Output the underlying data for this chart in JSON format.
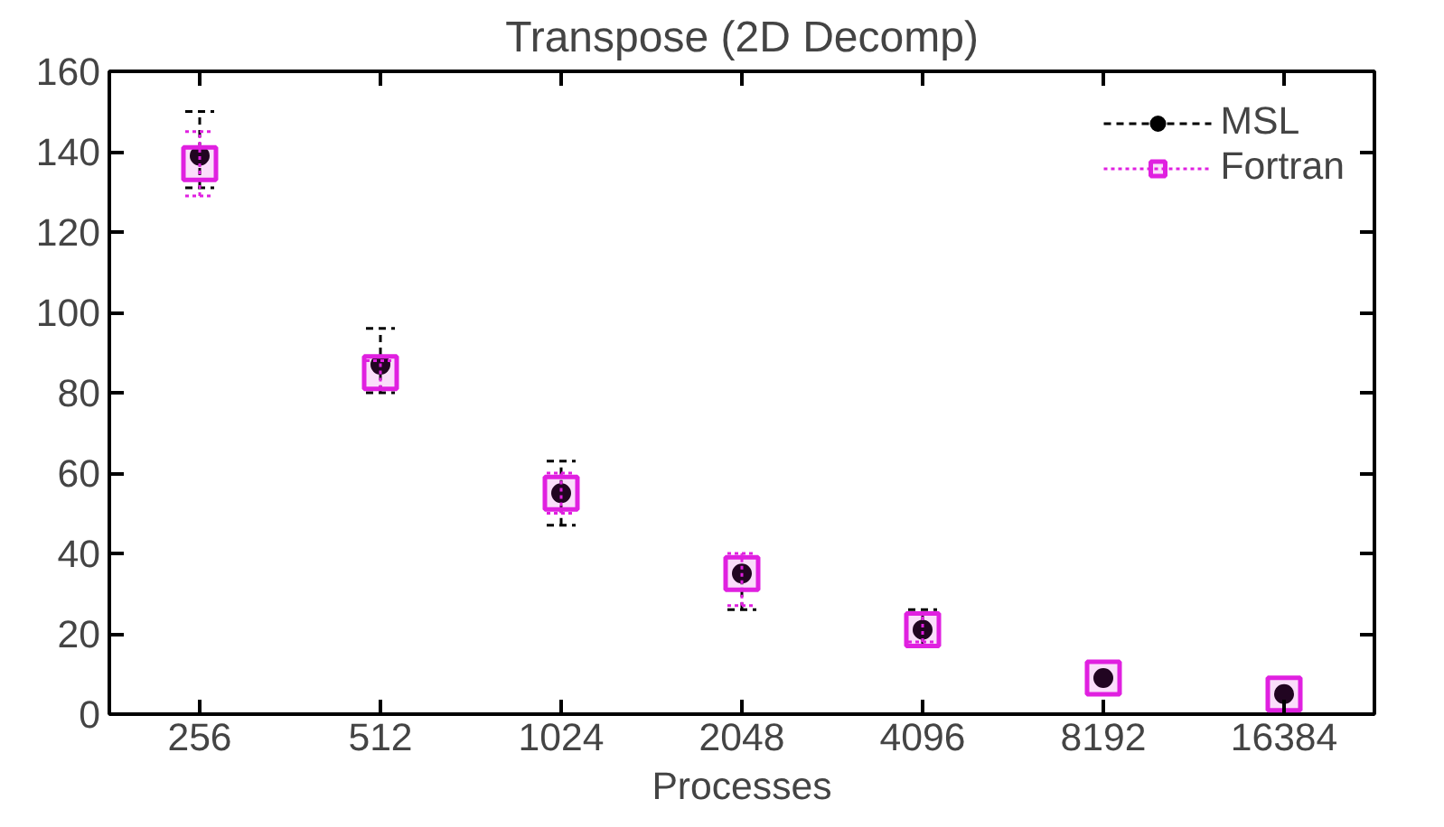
{
  "chart_data": {
    "type": "scatter",
    "title": "Transpose (2D Decomp)",
    "xlabel": "Processes",
    "categories": [
      "256",
      "512",
      "1024",
      "2048",
      "4096",
      "8192",
      "16384"
    ],
    "series": [
      {
        "name": "MSL",
        "color": "#000000",
        "marker": "circle",
        "values": [
          139,
          87,
          55,
          35,
          21,
          9,
          5
        ],
        "errors": [
          [
            131,
            150
          ],
          [
            80,
            96
          ],
          [
            47,
            63
          ],
          [
            26,
            39
          ],
          [
            17,
            26
          ],
          null,
          null
        ]
      },
      {
        "name": "Fortran",
        "color": "#e020e0",
        "marker": "square",
        "values": [
          137,
          85,
          55,
          35,
          21,
          9,
          5
        ],
        "errors": [
          [
            129,
            145
          ],
          [
            81,
            88
          ],
          [
            50,
            60
          ],
          [
            27,
            40
          ],
          [
            18,
            25
          ],
          null,
          null
        ]
      }
    ],
    "ylim": [
      0,
      160
    ],
    "yticks": [
      0,
      20,
      40,
      60,
      80,
      100,
      120,
      140,
      160
    ],
    "grid": false,
    "legend": "top right"
  }
}
